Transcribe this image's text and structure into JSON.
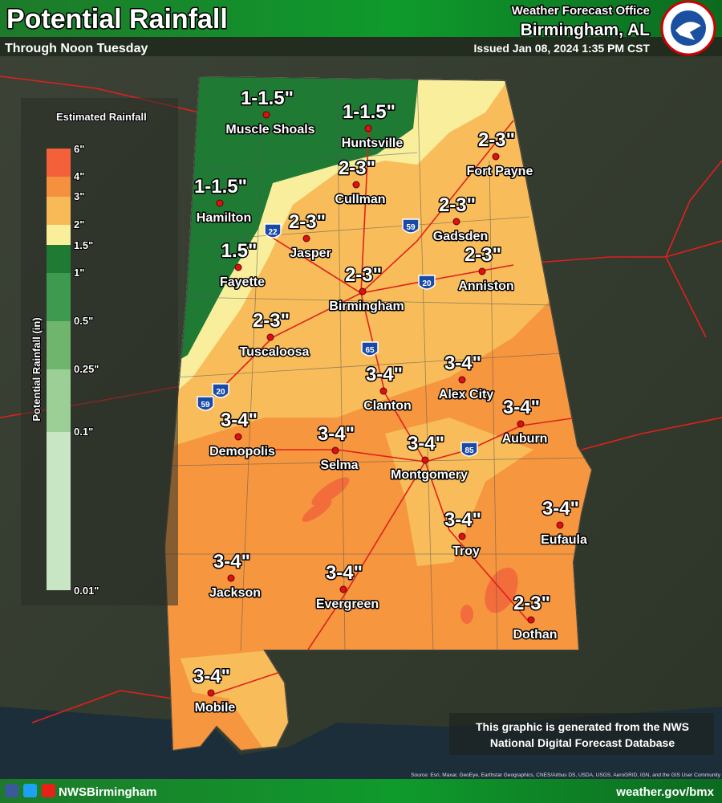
{
  "header": {
    "title": "Potential Rainfall",
    "subtitle": "Through Noon Tuesday",
    "office": "Weather Forecast Office",
    "location": "Birmingham, AL",
    "issued": "Issued Jan 08, 2024 1:35 PM CST"
  },
  "legend": {
    "title": "Estimated Rainfall",
    "axis_label": "Potential Rainfall (in)",
    "labels": [
      "6\"",
      "4\"",
      "3\"",
      "2\"",
      "1.5\"",
      "1\"",
      "0.5\"",
      "0.25\"",
      "0.1\"",
      "0.01\""
    ]
  },
  "cities": [
    {
      "name": "Muscle Shoals",
      "amount": "1-1.5\""
    },
    {
      "name": "Huntsville",
      "amount": "1-1.5\""
    },
    {
      "name": "Fort Payne",
      "amount": "2-3\""
    },
    {
      "name": "Cullman",
      "amount": "2-3\""
    },
    {
      "name": "Hamilton",
      "amount": "1-1.5\""
    },
    {
      "name": "Gadsden",
      "amount": "2-3\""
    },
    {
      "name": "Jasper",
      "amount": "2-3\""
    },
    {
      "name": "Fayette",
      "amount": "1.5\""
    },
    {
      "name": "Anniston",
      "amount": "2-3\""
    },
    {
      "name": "Birmingham",
      "amount": "2-3\""
    },
    {
      "name": "Tuscaloosa",
      "amount": "2-3\""
    },
    {
      "name": "Alex City",
      "amount": "3-4\""
    },
    {
      "name": "Clanton",
      "amount": "3-4\""
    },
    {
      "name": "Auburn",
      "amount": "3-4\""
    },
    {
      "name": "Demopolis",
      "amount": "3-4\""
    },
    {
      "name": "Selma",
      "amount": "3-4\""
    },
    {
      "name": "Montgomery",
      "amount": "3-4\""
    },
    {
      "name": "Eufaula",
      "amount": "3-4\""
    },
    {
      "name": "Troy",
      "amount": "3-4\""
    },
    {
      "name": "Jackson",
      "amount": "3-4\""
    },
    {
      "name": "Evergreen",
      "amount": "3-4\""
    },
    {
      "name": "Dothan",
      "amount": "2-3\""
    },
    {
      "name": "Mobile",
      "amount": "3-4\""
    }
  ],
  "interstates": [
    "22",
    "59",
    "20",
    "65",
    "20",
    "59",
    "85"
  ],
  "footer": {
    "handle": "NWSBirmingham",
    "url": "weather.gov/bmx",
    "note": [
      "This graphic is generated from the NWS",
      "National Digital Forecast Database"
    ],
    "source": "Source: Esri, Maxar, GeoEye, Earthstar Geographics, CNES/Airbus DS, USDA, USGS, AeroGRID, IGN, and the GIS User Community"
  }
}
